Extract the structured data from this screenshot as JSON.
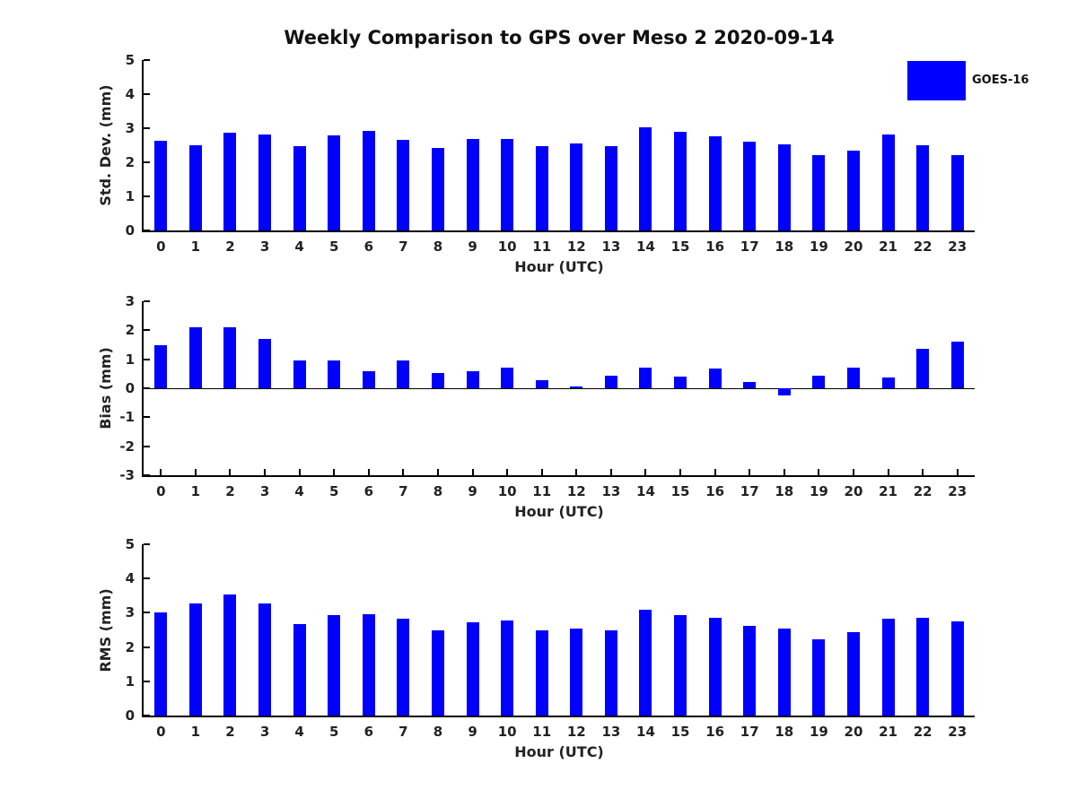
{
  "title": "Weekly Comparison to GPS over Meso 2 2020-09-14",
  "legend": {
    "label": "GOES-16",
    "color": "#0000FF",
    "position": "top-right"
  },
  "bar_color": "#0000FF",
  "axis_color": "#000000",
  "chart_data": [
    {
      "type": "bar",
      "name": "std-dev-panel",
      "ylabel": "Std. Dev. (mm)",
      "xlabel": "Hour (UTC)",
      "categories": [
        "0",
        "1",
        "2",
        "3",
        "4",
        "5",
        "6",
        "7",
        "8",
        "9",
        "10",
        "11",
        "12",
        "13",
        "14",
        "15",
        "16",
        "17",
        "18",
        "19",
        "20",
        "21",
        "22",
        "23"
      ],
      "values": [
        2.63,
        2.5,
        2.87,
        2.81,
        2.47,
        2.79,
        2.92,
        2.66,
        2.43,
        2.69,
        2.69,
        2.47,
        2.55,
        2.47,
        3.02,
        2.89,
        2.76,
        2.61,
        2.52,
        2.21,
        2.34,
        2.82,
        2.5,
        2.21
      ],
      "ylim": [
        0,
        5
      ],
      "yticks": [
        0,
        1,
        2,
        3,
        4,
        5
      ],
      "grid": false,
      "series_name": "GOES-16"
    },
    {
      "type": "bar",
      "name": "bias-panel",
      "ylabel": "Bias (mm)",
      "xlabel": "Hour (UTC)",
      "categories": [
        "0",
        "1",
        "2",
        "3",
        "4",
        "5",
        "6",
        "7",
        "8",
        "9",
        "10",
        "11",
        "12",
        "13",
        "14",
        "15",
        "16",
        "17",
        "18",
        "19",
        "20",
        "21",
        "22",
        "23"
      ],
      "values": [
        1.47,
        2.1,
        2.1,
        1.7,
        0.97,
        0.95,
        0.58,
        0.95,
        0.52,
        0.58,
        0.7,
        0.28,
        0.07,
        0.43,
        0.72,
        0.4,
        0.67,
        0.22,
        -0.24,
        0.42,
        0.7,
        0.37,
        1.35,
        1.62
      ],
      "ylim": [
        -3,
        3
      ],
      "yticks": [
        -3,
        -2,
        -1,
        0,
        1,
        2,
        3
      ],
      "zero_line": true,
      "grid": false,
      "series_name": "GOES-16"
    },
    {
      "type": "bar",
      "name": "rms-panel",
      "ylabel": "RMS (mm)",
      "xlabel": "Hour (UTC)",
      "categories": [
        "0",
        "1",
        "2",
        "3",
        "4",
        "5",
        "6",
        "7",
        "8",
        "9",
        "10",
        "11",
        "12",
        "13",
        "14",
        "15",
        "16",
        "17",
        "18",
        "19",
        "20",
        "21",
        "22",
        "23"
      ],
      "values": [
        3.01,
        3.27,
        3.53,
        3.28,
        2.66,
        2.94,
        2.96,
        2.83,
        2.49,
        2.72,
        2.77,
        2.49,
        2.55,
        2.5,
        3.09,
        2.92,
        2.85,
        2.61,
        2.54,
        2.23,
        2.43,
        2.82,
        2.85,
        2.74
      ],
      "ylim": [
        0,
        5
      ],
      "yticks": [
        0,
        1,
        2,
        3,
        4,
        5
      ],
      "grid": false,
      "series_name": "GOES-16"
    }
  ]
}
